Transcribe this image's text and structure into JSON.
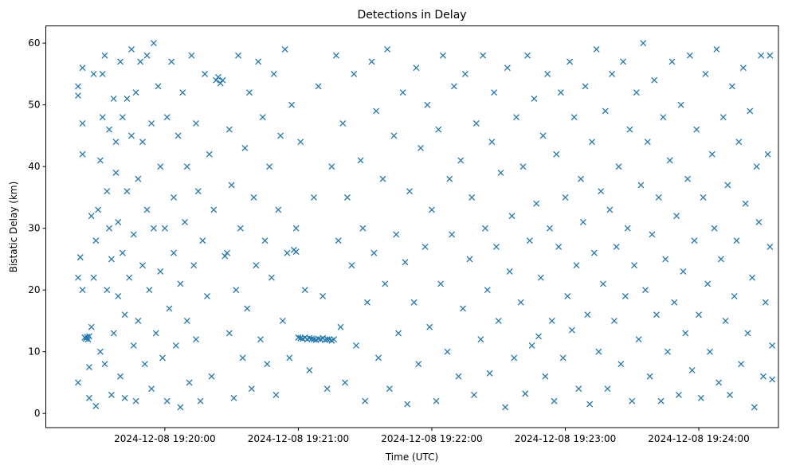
{
  "chart_data": {
    "type": "scatter",
    "title": "Detections in Delay",
    "xlabel": "Time (UTC)",
    "ylabel": "Bistatic Delay (km)",
    "x_units": "seconds after 2024-12-08 19:19:00 UTC",
    "xlim": [
      6.5,
      335.8
    ],
    "ylim": [
      -2.3,
      62.8
    ],
    "grid": false,
    "marker": "x",
    "color": "#1f77b4",
    "x_ticks": [
      {
        "value": 60,
        "label": "2024-12-08 19:20:00"
      },
      {
        "value": 120,
        "label": "2024-12-08 19:21:00"
      },
      {
        "value": 180,
        "label": "2024-12-08 19:22:00"
      },
      {
        "value": 240,
        "label": "2024-12-08 19:23:00"
      },
      {
        "value": 300,
        "label": "2024-12-08 19:24:00"
      }
    ],
    "y_ticks": [
      {
        "value": 0,
        "label": "0"
      },
      {
        "value": 10,
        "label": "10"
      },
      {
        "value": 20,
        "label": "20"
      },
      {
        "value": 30,
        "label": "30"
      },
      {
        "value": 40,
        "label": "40"
      },
      {
        "value": 50,
        "label": "50"
      },
      {
        "value": 60,
        "label": "60"
      }
    ],
    "points": [
      [
        21,
        53
      ],
      [
        21,
        51.5
      ],
      [
        21,
        22
      ],
      [
        21,
        5
      ],
      [
        22,
        25.3
      ],
      [
        23,
        42
      ],
      [
        23,
        56
      ],
      [
        23,
        47
      ],
      [
        23,
        20
      ],
      [
        24,
        12.3
      ],
      [
        24.5,
        12.1
      ],
      [
        25,
        12.4
      ],
      [
        25.5,
        12.0
      ],
      [
        26,
        12.5
      ],
      [
        26,
        2.5
      ],
      [
        26,
        7.5
      ],
      [
        27,
        32
      ],
      [
        27,
        14
      ],
      [
        28,
        55
      ],
      [
        28,
        22
      ],
      [
        29,
        1.2
      ],
      [
        29,
        28
      ],
      [
        30,
        33
      ],
      [
        31,
        10
      ],
      [
        31,
        41
      ],
      [
        32,
        48
      ],
      [
        32,
        55
      ],
      [
        33,
        58
      ],
      [
        33,
        8
      ],
      [
        34,
        36
      ],
      [
        34,
        20
      ],
      [
        35,
        30
      ],
      [
        35,
        46
      ],
      [
        36,
        25
      ],
      [
        36,
        3
      ],
      [
        37,
        51
      ],
      [
        37,
        13
      ],
      [
        38,
        44
      ],
      [
        38,
        39
      ],
      [
        39,
        19
      ],
      [
        39,
        31
      ],
      [
        40,
        57
      ],
      [
        40,
        6
      ],
      [
        41,
        26
      ],
      [
        41,
        48
      ],
      [
        42,
        16
      ],
      [
        42,
        2.5
      ],
      [
        43,
        36
      ],
      [
        43,
        51
      ],
      [
        44,
        22
      ],
      [
        45,
        59
      ],
      [
        45,
        45
      ],
      [
        46,
        29
      ],
      [
        46,
        11
      ],
      [
        47,
        52
      ],
      [
        47,
        2
      ],
      [
        48,
        38
      ],
      [
        48,
        15
      ],
      [
        49,
        57
      ],
      [
        50,
        24
      ],
      [
        50,
        44
      ],
      [
        51,
        8
      ],
      [
        52,
        33
      ],
      [
        52,
        58
      ],
      [
        53,
        20
      ],
      [
        54,
        47
      ],
      [
        54,
        4
      ],
      [
        55,
        60
      ],
      [
        55,
        30
      ],
      [
        56,
        13
      ],
      [
        57,
        53
      ],
      [
        58,
        40
      ],
      [
        58,
        23
      ],
      [
        59,
        9
      ],
      [
        60,
        30
      ],
      [
        61,
        48
      ],
      [
        61,
        2
      ],
      [
        62,
        17
      ],
      [
        63,
        57
      ],
      [
        64,
        35
      ],
      [
        64,
        26
      ],
      [
        65,
        11
      ],
      [
        66,
        45
      ],
      [
        67,
        1
      ],
      [
        67,
        21
      ],
      [
        68,
        52
      ],
      [
        69,
        31
      ],
      [
        70,
        15
      ],
      [
        70,
        40
      ],
      [
        71,
        5
      ],
      [
        72,
        58
      ],
      [
        73,
        24
      ],
      [
        74,
        47
      ],
      [
        74,
        12
      ],
      [
        75,
        36
      ],
      [
        76,
        2
      ],
      [
        77,
        28
      ],
      [
        78,
        55
      ],
      [
        79,
        19
      ],
      [
        80,
        42
      ],
      [
        81,
        6
      ],
      [
        82,
        33
      ],
      [
        83,
        54
      ],
      [
        84,
        54.5
      ],
      [
        85,
        53.5
      ],
      [
        86,
        54
      ],
      [
        87,
        25.5
      ],
      [
        88,
        26
      ],
      [
        89,
        46
      ],
      [
        89,
        13
      ],
      [
        90,
        37
      ],
      [
        91,
        2.5
      ],
      [
        92,
        20
      ],
      [
        93,
        58
      ],
      [
        94,
        30
      ],
      [
        95,
        9
      ],
      [
        96,
        43
      ],
      [
        97,
        17
      ],
      [
        98,
        52
      ],
      [
        99,
        4
      ],
      [
        100,
        35
      ],
      [
        101,
        24
      ],
      [
        102,
        57
      ],
      [
        103,
        12
      ],
      [
        104,
        48
      ],
      [
        105,
        28
      ],
      [
        106,
        8
      ],
      [
        107,
        40
      ],
      [
        108,
        22
      ],
      [
        109,
        55
      ],
      [
        110,
        3
      ],
      [
        111,
        33
      ],
      [
        112,
        45
      ],
      [
        113,
        15
      ],
      [
        114,
        59
      ],
      [
        115,
        26
      ],
      [
        116,
        9
      ],
      [
        117,
        50
      ],
      [
        118,
        26.5
      ],
      [
        119,
        26.2
      ],
      [
        119,
        30
      ],
      [
        120,
        12.3
      ],
      [
        121,
        12.2
      ],
      [
        122,
        12.1
      ],
      [
        123,
        12.3
      ],
      [
        124,
        12.0
      ],
      [
        125,
        12.2
      ],
      [
        126,
        12.1
      ],
      [
        127,
        12.0
      ],
      [
        128,
        11.9
      ],
      [
        129,
        12.1
      ],
      [
        130,
        12.0
      ],
      [
        131,
        12.2
      ],
      [
        132,
        11.9
      ],
      [
        133,
        12.0
      ],
      [
        134,
        12.0
      ],
      [
        135,
        11.8
      ],
      [
        136,
        12.0
      ],
      [
        121,
        44
      ],
      [
        123,
        20
      ],
      [
        125,
        7
      ],
      [
        127,
        35
      ],
      [
        129,
        53
      ],
      [
        131,
        19
      ],
      [
        133,
        4
      ],
      [
        135,
        40
      ],
      [
        137,
        58
      ],
      [
        138,
        28
      ],
      [
        139,
        14
      ],
      [
        140,
        47
      ],
      [
        141,
        5
      ],
      [
        142,
        35
      ],
      [
        144,
        24
      ],
      [
        145,
        55
      ],
      [
        146,
        11
      ],
      [
        148,
        41
      ],
      [
        149,
        30
      ],
      [
        150,
        2
      ],
      [
        151,
        18
      ],
      [
        153,
        57
      ],
      [
        154,
        26
      ],
      [
        155,
        49
      ],
      [
        156,
        9
      ],
      [
        158,
        38
      ],
      [
        159,
        21
      ],
      [
        160,
        59
      ],
      [
        161,
        4
      ],
      [
        163,
        45
      ],
      [
        164,
        29
      ],
      [
        165,
        13
      ],
      [
        167,
        52
      ],
      [
        168,
        24.5
      ],
      [
        169,
        1.5
      ],
      [
        170,
        36
      ],
      [
        172,
        18
      ],
      [
        173,
        56
      ],
      [
        174,
        8
      ],
      [
        175,
        43
      ],
      [
        177,
        27
      ],
      [
        178,
        50
      ],
      [
        179,
        14
      ],
      [
        180,
        33
      ],
      [
        182,
        2
      ],
      [
        183,
        46
      ],
      [
        184,
        21
      ],
      [
        185,
        58
      ],
      [
        187,
        10
      ],
      [
        188,
        38
      ],
      [
        189,
        29
      ],
      [
        190,
        53
      ],
      [
        192,
        6
      ],
      [
        193,
        41
      ],
      [
        194,
        17
      ],
      [
        195,
        55
      ],
      [
        197,
        25
      ],
      [
        198,
        35
      ],
      [
        199,
        3
      ],
      [
        200,
        47
      ],
      [
        202,
        12
      ],
      [
        203,
        58
      ],
      [
        204,
        30
      ],
      [
        205,
        20
      ],
      [
        206,
        6.5
      ],
      [
        207,
        44
      ],
      [
        208,
        52
      ],
      [
        209,
        27
      ],
      [
        210,
        15
      ],
      [
        211,
        39
      ],
      [
        213,
        1
      ],
      [
        214,
        56
      ],
      [
        215,
        23
      ],
      [
        216,
        32
      ],
      [
        217,
        9
      ],
      [
        218,
        48
      ],
      [
        220,
        18
      ],
      [
        221,
        40
      ],
      [
        222,
        3.2
      ],
      [
        223,
        58
      ],
      [
        224,
        28
      ],
      [
        225,
        11
      ],
      [
        226,
        51
      ],
      [
        227,
        34
      ],
      [
        228,
        12.5
      ],
      [
        229,
        22
      ],
      [
        230,
        45
      ],
      [
        231,
        6
      ],
      [
        232,
        55
      ],
      [
        233,
        30
      ],
      [
        234,
        15
      ],
      [
        235,
        2
      ],
      [
        236,
        42
      ],
      [
        237,
        27
      ],
      [
        238,
        52
      ],
      [
        239,
        9
      ],
      [
        240,
        35
      ],
      [
        241,
        19
      ],
      [
        242,
        57
      ],
      [
        243,
        13.5
      ],
      [
        244,
        48
      ],
      [
        245,
        24
      ],
      [
        246,
        4
      ],
      [
        247,
        38
      ],
      [
        248,
        31
      ],
      [
        249,
        53
      ],
      [
        250,
        16
      ],
      [
        251,
        1.5
      ],
      [
        252,
        44
      ],
      [
        253,
        26
      ],
      [
        254,
        59
      ],
      [
        255,
        10
      ],
      [
        256,
        36
      ],
      [
        257,
        21
      ],
      [
        258,
        49
      ],
      [
        259,
        4
      ],
      [
        260,
        33
      ],
      [
        261,
        55
      ],
      [
        262,
        15
      ],
      [
        263,
        27
      ],
      [
        264,
        40
      ],
      [
        265,
        8
      ],
      [
        266,
        57
      ],
      [
        267,
        19
      ],
      [
        268,
        30
      ],
      [
        269,
        46
      ],
      [
        270,
        2
      ],
      [
        271,
        24
      ],
      [
        272,
        52
      ],
      [
        273,
        12
      ],
      [
        274,
        37
      ],
      [
        275,
        60
      ],
      [
        276,
        20
      ],
      [
        277,
        44
      ],
      [
        278,
        6
      ],
      [
        279,
        29
      ],
      [
        280,
        54
      ],
      [
        281,
        16
      ],
      [
        282,
        35
      ],
      [
        283,
        2
      ],
      [
        284,
        48
      ],
      [
        285,
        25
      ],
      [
        286,
        10
      ],
      [
        287,
        41
      ],
      [
        288,
        57
      ],
      [
        289,
        18
      ],
      [
        290,
        32
      ],
      [
        291,
        3
      ],
      [
        292,
        50
      ],
      [
        293,
        23
      ],
      [
        294,
        13
      ],
      [
        295,
        38
      ],
      [
        296,
        58
      ],
      [
        297,
        7
      ],
      [
        298,
        28
      ],
      [
        299,
        46
      ],
      [
        300,
        16
      ],
      [
        301,
        2.5
      ],
      [
        302,
        35
      ],
      [
        303,
        55
      ],
      [
        304,
        21
      ],
      [
        305,
        10
      ],
      [
        306,
        42
      ],
      [
        307,
        30
      ],
      [
        308,
        59
      ],
      [
        309,
        5
      ],
      [
        310,
        25
      ],
      [
        311,
        48
      ],
      [
        312,
        15
      ],
      [
        313,
        37
      ],
      [
        314,
        3
      ],
      [
        315,
        53
      ],
      [
        316,
        19
      ],
      [
        317,
        28
      ],
      [
        318,
        44
      ],
      [
        319,
        8
      ],
      [
        320,
        56
      ],
      [
        321,
        34
      ],
      [
        322,
        13
      ],
      [
        323,
        49
      ],
      [
        324,
        22
      ],
      [
        325,
        1
      ],
      [
        326,
        40
      ],
      [
        327,
        31
      ],
      [
        328,
        58
      ],
      [
        329,
        6
      ],
      [
        330,
        18
      ],
      [
        331,
        42
      ],
      [
        332,
        27
      ],
      [
        332,
        58
      ],
      [
        333,
        11
      ],
      [
        333,
        5.5
      ]
    ]
  }
}
